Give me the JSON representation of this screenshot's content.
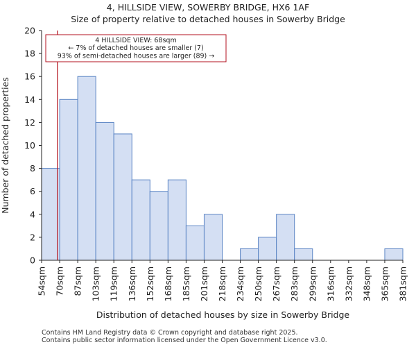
{
  "title": "4, HILLSIDE VIEW, SOWERBY BRIDGE, HX6 1AF",
  "subtitle": "Size of property relative to detached houses in Sowerby Bridge",
  "footer": [
    "Contains HM Land Registry data © Crown copyright and database right 2025.",
    "Contains public sector information licensed under the Open Government Licence v3.0."
  ],
  "colors": {
    "bar_fill": "#d4dff3",
    "bar_edge": "#5a84c4",
    "marker": "#b3121f",
    "annotation_border": "#b3121f"
  },
  "chart_data": {
    "type": "bar",
    "xlabel": "Distribution of detached houses by size in Sowerby Bridge",
    "ylabel": "Number of detached properties",
    "ylim": [
      0,
      20
    ],
    "yticks": [
      0,
      2,
      4,
      6,
      8,
      10,
      12,
      14,
      16,
      18,
      20
    ],
    "grid": false,
    "bin_edges": [
      "54sqm",
      "70sqm",
      "87sqm",
      "103sqm",
      "119sqm",
      "136sqm",
      "152sqm",
      "168sqm",
      "185sqm",
      "201sqm",
      "218sqm",
      "234sqm",
      "250sqm",
      "267sqm",
      "283sqm",
      "299sqm",
      "316sqm",
      "332sqm",
      "348sqm",
      "365sqm",
      "381sqm"
    ],
    "values": [
      8,
      14,
      16,
      12,
      11,
      7,
      6,
      7,
      3,
      4,
      0,
      1,
      2,
      4,
      1,
      0,
      0,
      0,
      0,
      1
    ],
    "marker": {
      "value_sqm": 68
    },
    "annotation": {
      "lines": [
        "4 HILLSIDE VIEW: 68sqm",
        "← 7% of detached houses are smaller (7)",
        "93% of semi-detached houses are larger (89) →"
      ]
    }
  }
}
